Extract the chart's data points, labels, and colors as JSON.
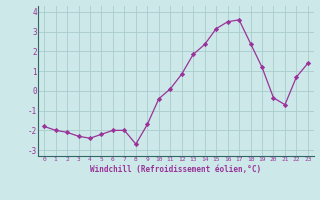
{
  "x": [
    0,
    1,
    2,
    3,
    4,
    5,
    6,
    7,
    8,
    9,
    10,
    11,
    12,
    13,
    14,
    15,
    16,
    17,
    18,
    19,
    20,
    21,
    22,
    23
  ],
  "y": [
    -1.8,
    -2.0,
    -2.1,
    -2.3,
    -2.4,
    -2.2,
    -2.0,
    -2.0,
    -2.7,
    -1.7,
    -0.4,
    0.1,
    0.85,
    1.85,
    2.35,
    3.15,
    3.5,
    3.6,
    2.4,
    1.2,
    -0.35,
    -0.7,
    0.7,
    1.4
  ],
  "line_color": "#993399",
  "marker": "D",
  "marker_size": 2.2,
  "background_color": "#cce8e8",
  "grid_color": "#b0d4d4",
  "xlabel": "Windchill (Refroidissement éolien,°C)",
  "xlabel_color": "#993399",
  "tick_color": "#993399",
  "ylim": [
    -3.3,
    4.3
  ],
  "yticks": [
    -3,
    -2,
    -1,
    0,
    1,
    2,
    3,
    4
  ],
  "xticks": [
    0,
    1,
    2,
    3,
    4,
    5,
    6,
    7,
    8,
    9,
    10,
    11,
    12,
    13,
    14,
    15,
    16,
    17,
    18,
    19,
    20,
    21,
    22,
    23
  ],
  "xlim": [
    -0.5,
    23.5
  ]
}
